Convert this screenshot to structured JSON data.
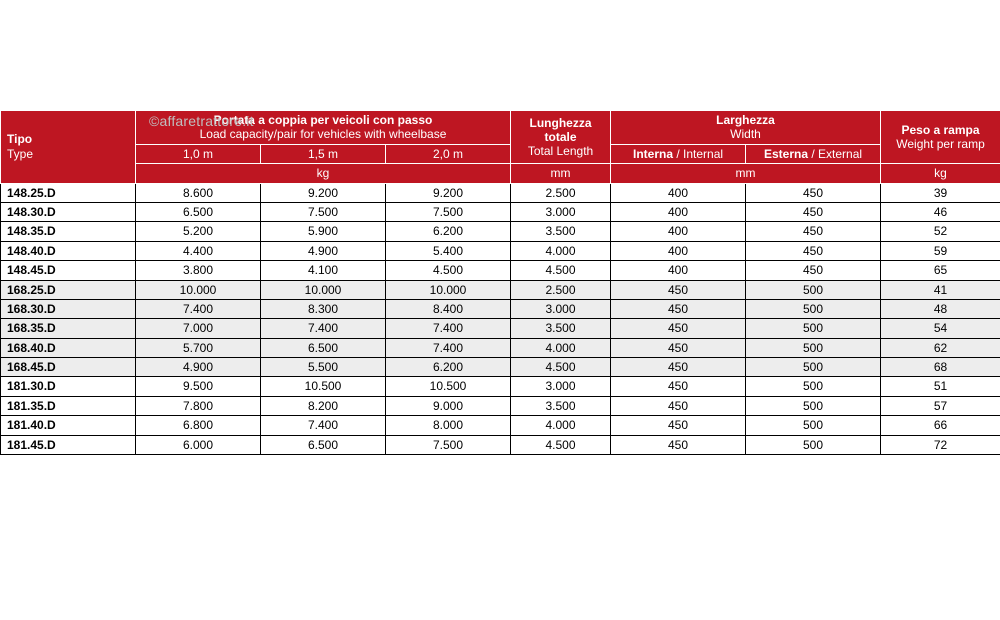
{
  "watermark": "©affaretrattore.it",
  "header": {
    "tipo_it": "Tipo",
    "tipo_en": "Type",
    "cap_it": "Portata a coppia per veicoli con passo",
    "cap_en": "Load capacity/pair for vehicles with wheelbase",
    "cap_cols": [
      "1,0 m",
      "1,5 m",
      "2,0 m"
    ],
    "cap_unit": "kg",
    "len_it": "Lunghezza totale",
    "len_en": "Total Length",
    "len_unit": "mm",
    "wid_it": "Larghezza",
    "wid_en": "Width",
    "wid_int_it": "Interna",
    "wid_int_en": "Internal",
    "wid_ext_it": "Esterna",
    "wid_ext_en": "External",
    "wid_unit": "mm",
    "wei_it": "Peso a rampa",
    "wei_en": "Weight per ramp",
    "wei_unit": "kg"
  },
  "rows": [
    {
      "shade": false,
      "type": "148.25.D",
      "c1": "8.600",
      "c2": "9.200",
      "c3": "9.200",
      "len": "2.500",
      "wint": "400",
      "wext": "450",
      "wt": "39"
    },
    {
      "shade": false,
      "type": "148.30.D",
      "c1": "6.500",
      "c2": "7.500",
      "c3": "7.500",
      "len": "3.000",
      "wint": "400",
      "wext": "450",
      "wt": "46"
    },
    {
      "shade": false,
      "type": "148.35.D",
      "c1": "5.200",
      "c2": "5.900",
      "c3": "6.200",
      "len": "3.500",
      "wint": "400",
      "wext": "450",
      "wt": "52"
    },
    {
      "shade": false,
      "type": "148.40.D",
      "c1": "4.400",
      "c2": "4.900",
      "c3": "5.400",
      "len": "4.000",
      "wint": "400",
      "wext": "450",
      "wt": "59"
    },
    {
      "shade": false,
      "type": "148.45.D",
      "c1": "3.800",
      "c2": "4.100",
      "c3": "4.500",
      "len": "4.500",
      "wint": "400",
      "wext": "450",
      "wt": "65"
    },
    {
      "shade": true,
      "type": "168.25.D",
      "c1": "10.000",
      "c2": "10.000",
      "c3": "10.000",
      "len": "2.500",
      "wint": "450",
      "wext": "500",
      "wt": "41"
    },
    {
      "shade": true,
      "type": "168.30.D",
      "c1": "7.400",
      "c2": "8.300",
      "c3": "8.400",
      "len": "3.000",
      "wint": "450",
      "wext": "500",
      "wt": "48"
    },
    {
      "shade": true,
      "type": "168.35.D",
      "c1": "7.000",
      "c2": "7.400",
      "c3": "7.400",
      "len": "3.500",
      "wint": "450",
      "wext": "500",
      "wt": "54"
    },
    {
      "shade": true,
      "type": "168.40.D",
      "c1": "5.700",
      "c2": "6.500",
      "c3": "7.400",
      "len": "4.000",
      "wint": "450",
      "wext": "500",
      "wt": "62"
    },
    {
      "shade": true,
      "type": "168.45.D",
      "c1": "4.900",
      "c2": "5.500",
      "c3": "6.200",
      "len": "4.500",
      "wint": "450",
      "wext": "500",
      "wt": "68"
    },
    {
      "shade": false,
      "type": "181.30.D",
      "c1": "9.500",
      "c2": "10.500",
      "c3": "10.500",
      "len": "3.000",
      "wint": "450",
      "wext": "500",
      "wt": "51"
    },
    {
      "shade": false,
      "type": "181.35.D",
      "c1": "7.800",
      "c2": "8.200",
      "c3": "9.000",
      "len": "3.500",
      "wint": "450",
      "wext": "500",
      "wt": "57"
    },
    {
      "shade": false,
      "type": "181.40.D",
      "c1": "6.800",
      "c2": "7.400",
      "c3": "8.000",
      "len": "4.000",
      "wint": "450",
      "wext": "500",
      "wt": "66"
    },
    {
      "shade": false,
      "type": "181.45.D",
      "c1": "6.000",
      "c2": "6.500",
      "c3": "7.500",
      "len": "4.500",
      "wint": "450",
      "wext": "500",
      "wt": "72"
    }
  ]
}
